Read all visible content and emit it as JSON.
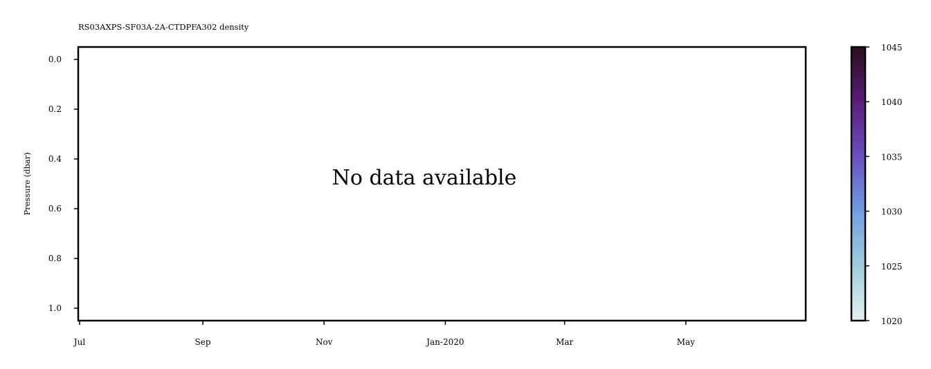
{
  "chart_data": {
    "type": "heatmap",
    "title": "RS03AXPS-SF03A-2A-CTDPFA302 density",
    "xlabel": "",
    "ylabel": "Pressure (dbar)",
    "x_ticks": [
      "Jul",
      "Sep",
      "Nov",
      "Jan-2020",
      "Mar",
      "May"
    ],
    "y_ticks": [
      "0.0",
      "0.2",
      "0.4",
      "0.6",
      "0.8",
      "1.0"
    ],
    "y_tick_values": [
      0.0,
      0.2,
      0.4,
      0.6,
      0.8,
      1.0
    ],
    "ylim": [
      1.05,
      -0.05
    ],
    "y_inverted": true,
    "x_tick_dates": [
      "2019-07-01",
      "2019-09-01",
      "2019-11-01",
      "2020-01-01",
      "2020-03-01",
      "2020-05-01"
    ],
    "xlim": [
      "2019-07-01",
      "2020-07-01"
    ],
    "message": "No data available",
    "values": [],
    "grid": false,
    "colorbar": {
      "range": [
        1020,
        1045
      ],
      "ticks": [
        "1020",
        "1025",
        "1030",
        "1035",
        "1040",
        "1045"
      ],
      "tick_values": [
        1020,
        1025,
        1030,
        1035,
        1040,
        1045
      ],
      "colormap": [
        "#e6f0f0",
        "#9fcddc",
        "#6f9fe0",
        "#6b4fc0",
        "#5a1e7a",
        "#2a0f1e"
      ]
    }
  }
}
